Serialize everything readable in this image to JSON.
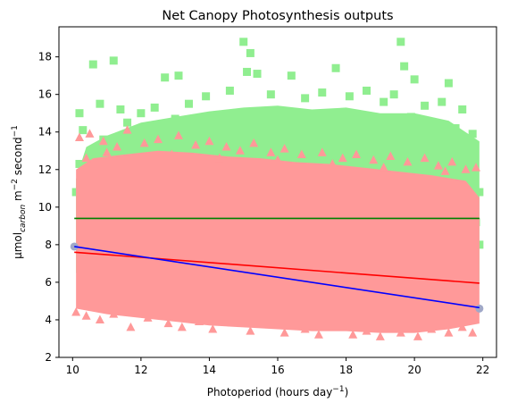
{
  "chart_data": {
    "type": "scatter",
    "title": "Net Canopy Photosynthesis outputs",
    "xlabel": {
      "main": "Photoperiod (hours day",
      "sup": "−1",
      "close": ")"
    },
    "ylabel": {
      "unit": "μmol",
      "sub": "carbon",
      "mid1": " m",
      "sup1": "−2",
      "mid2": " second",
      "sup2": "−1"
    },
    "xlim": [
      9.6,
      22.4
    ],
    "ylim": [
      2.0,
      19.6
    ],
    "xticks": [
      10,
      12,
      14,
      16,
      18,
      20,
      22
    ],
    "yticks": [
      2,
      4,
      6,
      8,
      10,
      12,
      14,
      16,
      18
    ],
    "xtick_labels": [
      "10",
      "12",
      "14",
      "16",
      "18",
      "20",
      "22"
    ],
    "ytick_labels": [
      "2",
      "4",
      "6",
      "8",
      "10",
      "12",
      "14",
      "16",
      "18"
    ],
    "grid": false,
    "series": [
      {
        "marker": "square",
        "color": "#90ee90",
        "points": [
          [
            10.6,
            17.6
          ],
          [
            11.2,
            17.8
          ],
          [
            12.7,
            16.9
          ],
          [
            13.1,
            17.0
          ],
          [
            15.0,
            18.8
          ],
          [
            15.1,
            17.2
          ],
          [
            15.2,
            18.2
          ],
          [
            15.4,
            17.1
          ],
          [
            16.4,
            17.0
          ],
          [
            17.7,
            17.4
          ],
          [
            19.4,
            16.0
          ],
          [
            19.6,
            18.8
          ],
          [
            19.7,
            17.5
          ],
          [
            20.0,
            16.8
          ],
          [
            21.0,
            16.6
          ],
          [
            10.2,
            15.0
          ],
          [
            10.8,
            15.5
          ],
          [
            11.4,
            15.2
          ],
          [
            12.0,
            15.0
          ],
          [
            12.4,
            15.3
          ],
          [
            13.4,
            15.5
          ],
          [
            13.9,
            15.9
          ],
          [
            14.6,
            16.2
          ],
          [
            15.8,
            16.0
          ],
          [
            16.8,
            15.8
          ],
          [
            17.3,
            16.1
          ],
          [
            18.1,
            15.9
          ],
          [
            18.6,
            16.2
          ],
          [
            19.1,
            15.6
          ],
          [
            20.3,
            15.4
          ],
          [
            20.8,
            15.6
          ],
          [
            21.4,
            15.2
          ],
          [
            10.3,
            14.1
          ],
          [
            10.9,
            13.6
          ],
          [
            11.6,
            14.5
          ],
          [
            12.2,
            14.2
          ],
          [
            13.0,
            14.7
          ],
          [
            14.2,
            14.8
          ],
          [
            15.5,
            15.1
          ],
          [
            16.1,
            14.6
          ],
          [
            17.0,
            14.9
          ],
          [
            18.4,
            14.7
          ],
          [
            19.0,
            14.5
          ],
          [
            19.9,
            14.8
          ],
          [
            20.6,
            14.4
          ],
          [
            21.2,
            14.2
          ],
          [
            21.7,
            13.9
          ],
          [
            10.1,
            10.8
          ],
          [
            10.4,
            11.6
          ],
          [
            21.8,
            9.2
          ],
          [
            21.9,
            8.0
          ],
          [
            21.6,
            12.0
          ],
          [
            10.5,
            12.5
          ],
          [
            10.2,
            12.3
          ],
          [
            21.9,
            10.8
          ]
        ]
      },
      {
        "marker": "triangle",
        "color": "#ff9999",
        "points": [
          [
            10.2,
            13.7
          ],
          [
            10.5,
            13.9
          ],
          [
            10.9,
            13.5
          ],
          [
            11.3,
            13.2
          ],
          [
            11.6,
            14.1
          ],
          [
            12.1,
            13.4
          ],
          [
            12.5,
            13.6
          ],
          [
            13.1,
            13.8
          ],
          [
            13.6,
            13.3
          ],
          [
            14.0,
            13.5
          ],
          [
            14.5,
            13.2
          ],
          [
            14.9,
            13.0
          ],
          [
            15.3,
            13.4
          ],
          [
            15.8,
            12.9
          ],
          [
            16.2,
            13.1
          ],
          [
            16.7,
            12.8
          ],
          [
            17.3,
            12.9
          ],
          [
            17.9,
            12.6
          ],
          [
            18.3,
            12.8
          ],
          [
            18.8,
            12.5
          ],
          [
            19.3,
            12.7
          ],
          [
            19.8,
            12.4
          ],
          [
            20.3,
            12.6
          ],
          [
            20.7,
            12.2
          ],
          [
            21.1,
            12.4
          ],
          [
            21.5,
            12.0
          ],
          [
            21.8,
            12.1
          ],
          [
            10.4,
            12.6
          ],
          [
            11.0,
            12.9
          ],
          [
            12.9,
            12.8
          ],
          [
            14.3,
            12.6
          ],
          [
            16.0,
            12.5
          ],
          [
            17.6,
            12.3
          ],
          [
            19.1,
            12.1
          ],
          [
            20.9,
            11.9
          ],
          [
            10.1,
            4.4
          ],
          [
            10.4,
            4.2
          ],
          [
            10.8,
            4.0
          ],
          [
            11.2,
            4.3
          ],
          [
            11.7,
            3.6
          ],
          [
            12.2,
            4.1
          ],
          [
            12.8,
            3.8
          ],
          [
            13.2,
            3.6
          ],
          [
            13.7,
            3.9
          ],
          [
            14.1,
            3.5
          ],
          [
            14.6,
            3.9
          ],
          [
            15.2,
            3.4
          ],
          [
            15.6,
            3.8
          ],
          [
            16.2,
            3.3
          ],
          [
            16.8,
            3.5
          ],
          [
            17.2,
            3.2
          ],
          [
            17.6,
            3.7
          ],
          [
            18.2,
            3.2
          ],
          [
            18.6,
            3.4
          ],
          [
            19.0,
            3.1
          ],
          [
            19.6,
            3.3
          ],
          [
            20.1,
            3.1
          ],
          [
            20.5,
            3.5
          ],
          [
            21.0,
            3.3
          ],
          [
            21.4,
            3.6
          ],
          [
            21.7,
            3.3
          ]
        ]
      }
    ],
    "lines": [
      {
        "color": "#008000",
        "x": [
          10.05,
          21.9
        ],
        "y": [
          9.4,
          9.4
        ]
      },
      {
        "color": "#ff0000",
        "x": [
          10.05,
          21.9
        ],
        "y": [
          7.6,
          5.95
        ]
      },
      {
        "color": "#0000ff",
        "x": [
          10.05,
          21.9
        ],
        "y": [
          7.9,
          4.65
        ]
      }
    ],
    "end_markers": [
      {
        "color": "#a0a8c8",
        "x": 10.05,
        "y": 7.9
      },
      {
        "color": "#a0a8c8",
        "x": 21.9,
        "y": 4.6
      }
    ]
  }
}
